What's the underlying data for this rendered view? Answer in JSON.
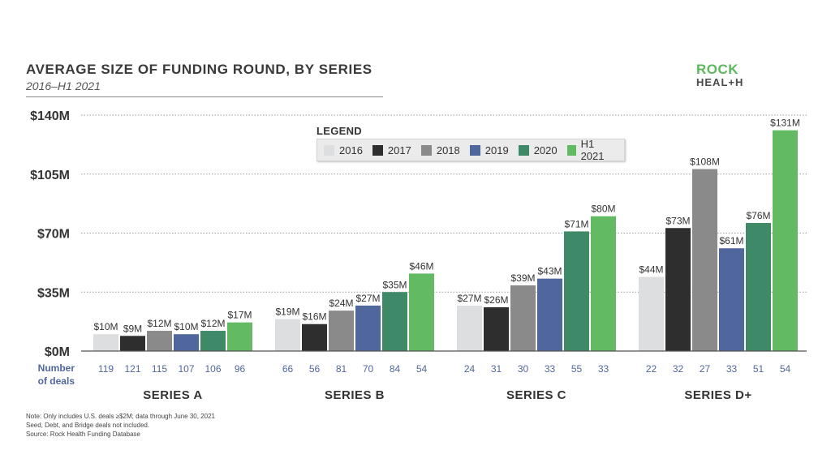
{
  "header": {
    "title": "AVERAGE SIZE OF FUNDING ROUND, BY SERIES",
    "subtitle": "2016–H1 2021"
  },
  "logo": {
    "line1": "ROCK",
    "line2": "HEAL+H"
  },
  "notes": [
    "Note: Only includes U.S. deals ≥$2M; data through June 30, 2021",
    "Seed, Debt, and Bridge deals not included.",
    "Source: Rock Health Funding Database"
  ],
  "deals_label": [
    "Number",
    "of deals"
  ],
  "chart_data": {
    "type": "bar",
    "title": "AVERAGE SIZE OF FUNDING ROUND, BY SERIES",
    "subtitle": "2016–H1 2021",
    "categories": [
      "SERIES A",
      "SERIES B",
      "SERIES C",
      "SERIES D+"
    ],
    "ylim": [
      0,
      140
    ],
    "yticks": [
      0,
      35,
      70,
      105,
      140
    ],
    "ytick_labels": [
      "$0M",
      "$35M",
      "$70M",
      "$105M",
      "$140M"
    ],
    "grid": true,
    "legend_title": "LEGEND",
    "legend_position": "top-center",
    "series": [
      {
        "name": "2016",
        "color": "#dcdedf",
        "values": [
          10,
          19,
          27,
          44
        ],
        "labels": [
          "$10M",
          "$19M",
          "$27M",
          "$44M"
        ],
        "deals": [
          119,
          66,
          24,
          22
        ]
      },
      {
        "name": "2017",
        "color": "#2e2e2e",
        "values": [
          9,
          16,
          26,
          73
        ],
        "labels": [
          "$9M",
          "$16M",
          "$26M",
          "$73M"
        ],
        "deals": [
          121,
          56,
          31,
          32
        ]
      },
      {
        "name": "2018",
        "color": "#8a8a8a",
        "values": [
          12,
          24,
          39,
          108
        ],
        "labels": [
          "$12M",
          "$24M",
          "$39M",
          "$108M"
        ],
        "deals": [
          115,
          81,
          30,
          27
        ]
      },
      {
        "name": "2019",
        "color": "#50679e",
        "values": [
          10,
          27,
          43,
          61
        ],
        "labels": [
          "$10M",
          "$27M",
          "$43M",
          "$61M"
        ],
        "deals": [
          107,
          70,
          33,
          33
        ]
      },
      {
        "name": "2020",
        "color": "#3f8a66",
        "values": [
          12,
          35,
          71,
          76
        ],
        "labels": [
          "$12M",
          "$35M",
          "$71M",
          "$76M"
        ],
        "deals": [
          106,
          84,
          55,
          51
        ]
      },
      {
        "name": "H1 2021",
        "color": "#62bb62",
        "values": [
          17,
          46,
          80,
          131
        ],
        "labels": [
          "$17M",
          "$46M",
          "$80M",
          "$131M"
        ],
        "deals": [
          96,
          54,
          33,
          54
        ]
      }
    ]
  }
}
